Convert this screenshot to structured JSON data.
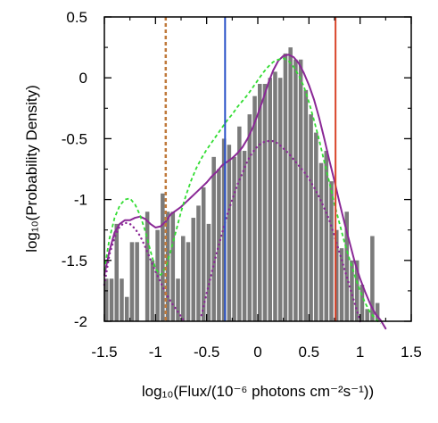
{
  "chart_data": {
    "type": "bar",
    "xlabel": "log₁₀(Flux/(10⁻⁶ photons cm⁻²s⁻¹))",
    "ylabel": "log₁₀(Probability Density)",
    "xlim": [
      -1.5,
      1.5
    ],
    "ylim": [
      -2,
      0.5
    ],
    "xticks": [
      "-1.5",
      "-1",
      "-0.5",
      "0",
      "0.5",
      "1",
      "1.5"
    ],
    "yticks": [
      "-2",
      "-1.5",
      "-1",
      "-0.5",
      "0",
      "0.5"
    ],
    "xtick_values": [
      -1.5,
      -1,
      -0.5,
      0,
      0.5,
      1,
      1.5
    ],
    "ytick_values": [
      -2,
      -1.5,
      -1,
      -0.5,
      0,
      0.5
    ],
    "grid": false,
    "legend": "none",
    "histogram": {
      "color": "#7b7b7b",
      "bin_width": 0.05,
      "bin_left_edges": [
        -1.5,
        -1.45,
        -1.4,
        -1.35,
        -1.3,
        -1.25,
        -1.2,
        -1.15,
        -1.1,
        -1.05,
        -1.0,
        -0.95,
        -0.9,
        -0.85,
        -0.8,
        -0.75,
        -0.7,
        -0.65,
        -0.6,
        -0.55,
        -0.5,
        -0.45,
        -0.4,
        -0.35,
        -0.3,
        -0.25,
        -0.2,
        -0.15,
        -0.1,
        -0.05,
        0.0,
        0.05,
        0.1,
        0.15,
        0.2,
        0.25,
        0.3,
        0.35,
        0.4,
        0.45,
        0.5,
        0.55,
        0.6,
        0.65,
        0.7,
        0.75,
        0.8,
        0.85,
        0.9,
        0.95,
        1.0,
        1.05,
        1.1,
        1.15,
        1.2
      ],
      "values": [
        -1.65,
        -1.65,
        -1.2,
        -1.65,
        -1.8,
        -1.35,
        -1.35,
        -2.0,
        -1.1,
        -1.5,
        -1.25,
        -0.95,
        -1.1,
        -1.1,
        -1.65,
        -1.3,
        -1.35,
        -1.15,
        -1.05,
        -0.9,
        -1.2,
        -0.65,
        -0.75,
        -0.5,
        -0.55,
        -0.65,
        -0.4,
        -0.6,
        -0.3,
        -0.15,
        -0.05,
        -0.05,
        0.0,
        0.05,
        0.0,
        0.2,
        0.25,
        0.15,
        0.15,
        -0.1,
        -0.3,
        -0.45,
        -0.7,
        -0.6,
        -0.85,
        -1.25,
        -1.4,
        -1.1,
        -1.5,
        -1.5,
        -1.7,
        -1.9,
        -1.3,
        -1.85,
        -2.0
      ]
    },
    "lines": [
      {
        "style": "solid",
        "color": "#8a2896",
        "x": [
          -1.5,
          -1.45,
          -1.4,
          -1.35,
          -1.3,
          -1.25,
          -1.2,
          -1.15,
          -1.1,
          -1.05,
          -1.0,
          -0.95,
          -0.9,
          -0.85,
          -0.8,
          -0.75,
          -0.7,
          -0.65,
          -0.6,
          -0.55,
          -0.5,
          -0.45,
          -0.4,
          -0.35,
          -0.3,
          -0.25,
          -0.2,
          -0.15,
          -0.1,
          -0.05,
          0.0,
          0.05,
          0.1,
          0.15,
          0.2,
          0.25,
          0.3,
          0.35,
          0.4,
          0.45,
          0.5,
          0.55,
          0.6,
          0.65,
          0.7,
          0.75,
          0.8,
          0.85,
          0.9,
          0.95,
          1.0,
          1.05,
          1.1,
          1.15,
          1.2,
          1.25
        ],
        "y": [
          -1.62,
          -1.42,
          -1.27,
          -1.2,
          -1.17,
          -1.17,
          -1.15,
          -1.14,
          -1.16,
          -1.2,
          -1.23,
          -1.22,
          -1.18,
          -1.12,
          -1.09,
          -1.06,
          -1.02,
          -0.98,
          -0.94,
          -0.9,
          -0.86,
          -0.81,
          -0.77,
          -0.72,
          -0.69,
          -0.66,
          -0.62,
          -0.57,
          -0.5,
          -0.41,
          -0.3,
          -0.18,
          -0.05,
          0.06,
          0.14,
          0.18,
          0.19,
          0.17,
          0.12,
          0.04,
          -0.06,
          -0.18,
          -0.33,
          -0.5,
          -0.68,
          -0.85,
          -1.03,
          -1.2,
          -1.36,
          -1.52,
          -1.65,
          -1.76,
          -1.86,
          -1.94,
          -1.99,
          -2.06
        ]
      },
      {
        "style": "dotted",
        "color": "#8a2896",
        "x": [
          -1.5,
          -1.45,
          -1.4,
          -1.35,
          -1.3,
          -1.25,
          -1.2,
          -1.15,
          -1.1,
          -1.05,
          -1.0,
          -0.95,
          -0.9,
          -0.85,
          -0.8,
          -0.75,
          -0.72
        ],
        "y": [
          -1.7,
          -1.45,
          -1.31,
          -1.22,
          -1.19,
          -1.2,
          -1.24,
          -1.3,
          -1.39,
          -1.49,
          -1.59,
          -1.68,
          -1.77,
          -1.84,
          -1.9,
          -1.96,
          -2.0
        ]
      },
      {
        "style": "dotted",
        "color": "#8a2896",
        "x": [
          -0.55,
          -0.5,
          -0.45,
          -0.4,
          -0.35,
          -0.3,
          -0.25,
          -0.2,
          -0.15,
          -0.1,
          -0.05,
          0.0,
          0.05,
          0.1,
          0.15,
          0.2,
          0.25,
          0.3,
          0.35,
          0.4,
          0.45,
          0.5,
          0.55,
          0.6,
          0.65,
          0.7,
          0.75,
          0.8,
          0.85,
          0.9,
          0.95,
          1.0
        ],
        "y": [
          -1.95,
          -1.77,
          -1.6,
          -1.43,
          -1.28,
          -1.13,
          -1.0,
          -0.88,
          -0.78,
          -0.68,
          -0.61,
          -0.56,
          -0.53,
          -0.52,
          -0.52,
          -0.54,
          -0.58,
          -0.62,
          -0.67,
          -0.72,
          -0.77,
          -0.83,
          -0.9,
          -0.98,
          -1.07,
          -1.17,
          -1.3,
          -1.44,
          -1.58,
          -1.72,
          -1.86,
          -2.0
        ]
      },
      {
        "style": "dashed",
        "color": "#33dd33",
        "x": [
          -1.5,
          -1.45,
          -1.4,
          -1.35,
          -1.3,
          -1.25,
          -1.2,
          -1.15,
          -1.1,
          -1.05,
          -1.0,
          -0.95,
          -0.9,
          -0.85,
          -0.8,
          -0.75,
          -0.7,
          -0.65,
          -0.6,
          -0.55,
          -0.5,
          -0.45,
          -0.4,
          -0.35,
          -0.3,
          -0.25,
          -0.2,
          -0.15,
          -0.1,
          -0.05,
          0.0,
          0.05,
          0.1,
          0.15,
          0.2,
          0.25,
          0.3,
          0.35,
          0.4,
          0.45,
          0.5,
          0.55,
          0.6,
          0.65,
          0.7,
          0.75,
          0.8,
          0.85,
          0.9,
          0.95,
          1.0,
          1.05,
          1.1,
          1.15,
          1.2
        ],
        "y": [
          -1.58,
          -1.32,
          -1.15,
          -1.05,
          -1.0,
          -0.99,
          -1.04,
          -1.13,
          -1.26,
          -1.42,
          -1.57,
          -1.62,
          -1.56,
          -1.42,
          -1.26,
          -1.1,
          -0.96,
          -0.84,
          -0.74,
          -0.66,
          -0.59,
          -0.53,
          -0.47,
          -0.41,
          -0.35,
          -0.3,
          -0.24,
          -0.19,
          -0.14,
          -0.08,
          -0.02,
          0.04,
          0.09,
          0.13,
          0.15,
          0.16,
          0.14,
          0.09,
          0.02,
          -0.07,
          -0.2,
          -0.35,
          -0.51,
          -0.69,
          -0.86,
          -1.04,
          -1.2,
          -1.36,
          -1.5,
          -1.63,
          -1.75,
          -1.85,
          -1.93,
          -1.98,
          -2.02
        ]
      }
    ],
    "vertical_lines": [
      {
        "x": -0.9,
        "color": "#c07a3c",
        "style": "dashed"
      },
      {
        "x": -0.32,
        "color": "#2a52c8",
        "style": "solid"
      },
      {
        "x": 0.76,
        "color": "#d9452a",
        "style": "solid"
      }
    ]
  }
}
